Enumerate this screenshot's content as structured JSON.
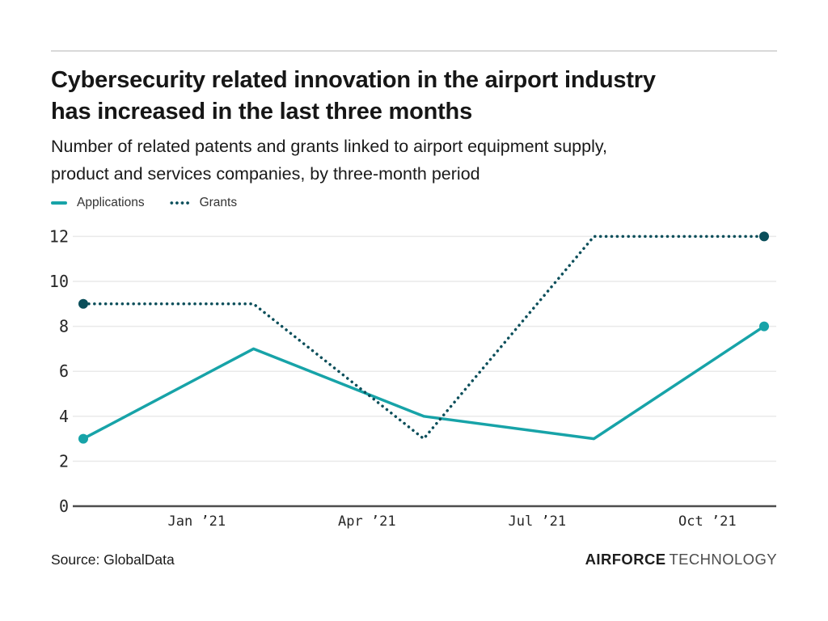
{
  "header": {
    "title_line1": "Cybersecurity related innovation in the airport industry",
    "title_line2": "has increased in the last three months",
    "subtitle_line1": "Number of related patents and grants linked to airport equipment supply,",
    "subtitle_line2": "product and services companies, by three-month period"
  },
  "chart_data": {
    "type": "line",
    "x_tick_labels": [
      "Jan ’21",
      "Apr ’21",
      "Jul ’21",
      "Oct ’21"
    ],
    "x_tick_months": [
      2,
      5,
      8,
      11
    ],
    "point_months": [
      0,
      3,
      6,
      9,
      12
    ],
    "y_ticks": [
      0,
      2,
      4,
      6,
      8,
      10,
      12
    ],
    "ylim": [
      0,
      12
    ],
    "grid": "horizontal",
    "legend_position": "top-left",
    "series": [
      {
        "name": "Applications",
        "style": "solid",
        "color": "#17a3a8",
        "values": [
          3,
          7,
          4,
          3,
          8
        ]
      },
      {
        "name": "Grants",
        "style": "dotted",
        "color": "#0a4e5a",
        "values": [
          9,
          9,
          3,
          12,
          12
        ]
      }
    ]
  },
  "colors": {
    "grid_line": "#eaeaea",
    "zero_axis": "#4d4d4d",
    "tick_text": "#262626"
  },
  "footer": {
    "source": "Source: GlobalData",
    "brand_bold": "AIRFORCE",
    "brand_light": "TECHNOLOGY"
  }
}
